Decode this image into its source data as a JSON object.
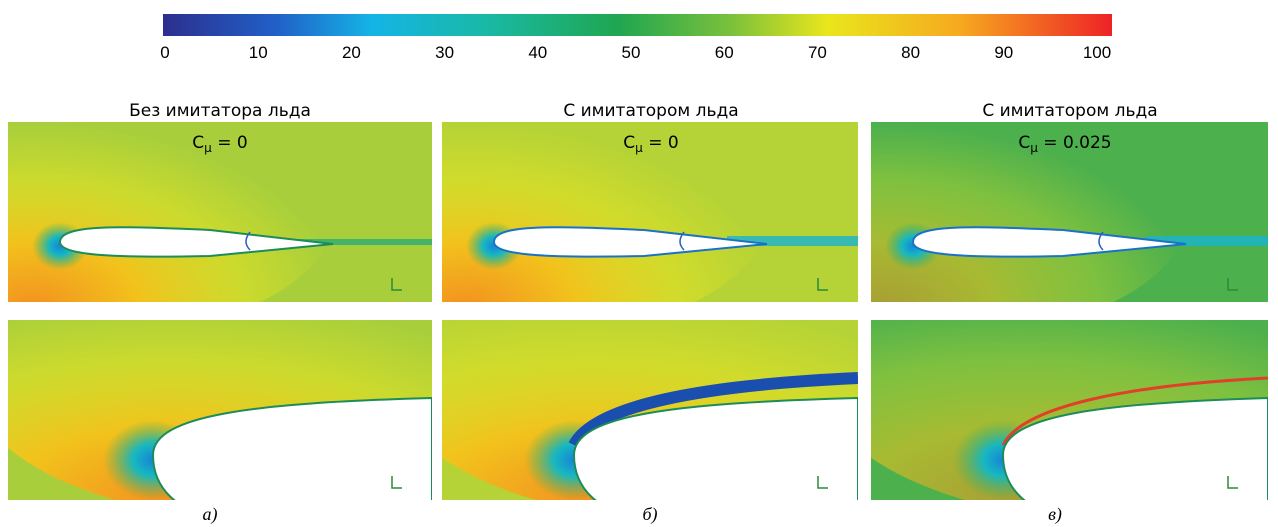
{
  "colorbar": {
    "ticks": [
      0,
      10,
      20,
      30,
      40,
      50,
      60,
      70,
      80,
      90,
      100
    ]
  },
  "panels": [
    {
      "title": "Без имитатора льда",
      "coefficient": {
        "base": "C",
        "sub": "μ",
        "rest": " = 0"
      },
      "caption": "а)"
    },
    {
      "title": "С имитатором льда",
      "coefficient": {
        "base": "C",
        "sub": "μ",
        "rest": " = 0"
      },
      "caption": "б)"
    },
    {
      "title": "С имитатором льда",
      "coefficient": {
        "base": "C",
        "sub": "μ",
        "rest": " = 0.025"
      },
      "caption": "в)"
    }
  ]
}
